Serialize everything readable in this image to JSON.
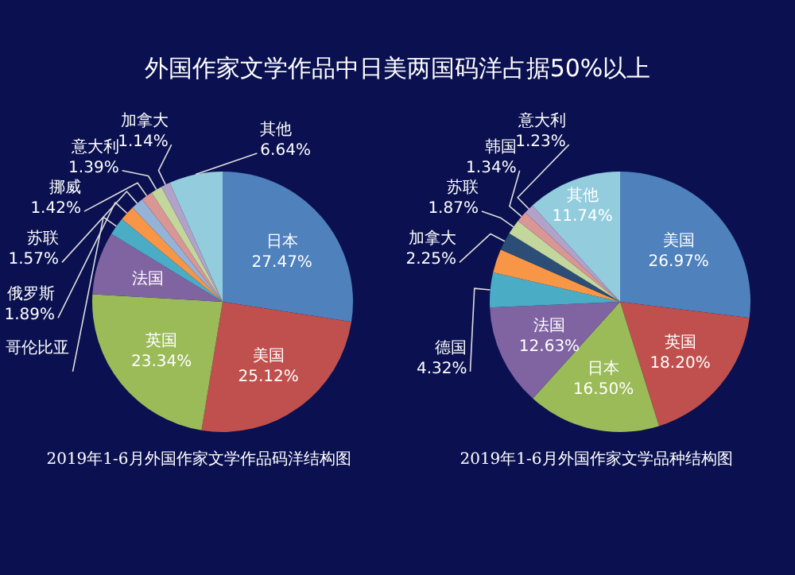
{
  "chart_data": [
    {
      "type": "pie",
      "title": "外国作家文学作品中日美两国码洋占据50%以上",
      "categories": [
        "日本",
        "美国",
        "英国",
        "法国",
        "哥伦比亚",
        "俄罗斯",
        "苏联",
        "挪威",
        "意大利",
        "加拿大",
        "其他"
      ],
      "values": [
        27.47,
        25.12,
        23.34,
        7.8,
        2.22,
        1.89,
        1.57,
        1.42,
        1.39,
        1.14,
        6.64
      ],
      "colors": [
        "#4f81bd",
        "#c0504d",
        "#9bbb59",
        "#8064a2",
        "#4bacc6",
        "#f79646",
        "#95b3d7",
        "#d99694",
        "#c3d69b",
        "#b3a2c7",
        "#93cddd"
      ],
      "value_labels": [
        "27.47%",
        "25.12%",
        "23.34%",
        null,
        null,
        "1.89%",
        "1.57%",
        "1.42%",
        "1.39%",
        "1.14%",
        "6.64%"
      ],
      "annotations": [
        "2019年1-6月外国作家文学作品码洋结构图"
      ]
    },
    {
      "type": "pie",
      "categories": [
        "美国",
        "英国",
        "日本",
        "法国",
        "德国",
        null,
        "加拿大",
        "苏联",
        "韩国",
        "意大利",
        "其他"
      ],
      "values": [
        26.97,
        18.2,
        16.5,
        12.63,
        4.32,
        2.95,
        2.25,
        1.87,
        1.34,
        1.23,
        11.74
      ],
      "colors": [
        "#4f81bd",
        "#c0504d",
        "#9bbb59",
        "#8064a2",
        "#4bacc6",
        "#f79646",
        "#2c4d75",
        "#c3d69b",
        "#d99694",
        "#b3a2c7",
        "#93cddd"
      ],
      "value_labels": [
        "26.97%",
        "18.20%",
        "16.50%",
        "12.63%",
        "4.32%",
        null,
        "2.25%",
        "1.87%",
        "1.34%",
        "1.23%",
        "11.74%"
      ],
      "annotations": [
        "2019年1-6月外国作家文学品种结构图"
      ]
    }
  ]
}
